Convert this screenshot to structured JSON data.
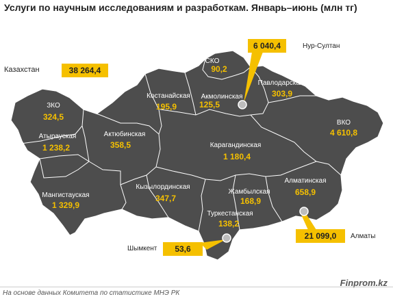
{
  "title": "Услуги по научным исследованиям и разработкам. Январь–июнь (млн тг)",
  "total": {
    "label": "Казахстан",
    "value": "38 264,4"
  },
  "regions": [
    {
      "id": "sko",
      "name": "СКО",
      "value": "90,2"
    },
    {
      "id": "kostanay",
      "name": "Костанайская",
      "value": "195,9"
    },
    {
      "id": "akmola",
      "name": "Акмолинская",
      "value": "125,5"
    },
    {
      "id": "pavlodar",
      "name": "Павлодарская",
      "value": "303,9"
    },
    {
      "id": "zko",
      "name": "ЗКО",
      "value": "324,5"
    },
    {
      "id": "atyrau",
      "name": "Атырауская",
      "value": "1 238,2"
    },
    {
      "id": "aktobe",
      "name": "Актюбинская",
      "value": "358,5"
    },
    {
      "id": "vko",
      "name": "ВКО",
      "value": "4 610,8"
    },
    {
      "id": "karaganda",
      "name": "Карагандинская",
      "value": "1 180,4"
    },
    {
      "id": "mangystau",
      "name": "Мангистауская",
      "value": "1 329,9"
    },
    {
      "id": "kyzylorda",
      "name": "Кызылординская",
      "value": "347,7"
    },
    {
      "id": "zhambyl",
      "name": "Жамбылская",
      "value": "168,9"
    },
    {
      "id": "almaty_obl",
      "name": "Алматинская",
      "value": "658,9"
    },
    {
      "id": "turkestan",
      "name": "Туркестанская",
      "value": "138,2"
    }
  ],
  "cities": [
    {
      "id": "nur-sultan",
      "name": "Нур-Султан",
      "value": "6 040,4"
    },
    {
      "id": "shymkent",
      "name": "Шымкент",
      "value": "53,6"
    },
    {
      "id": "almaty",
      "name": "Алматы",
      "value": "21 099,0"
    }
  ],
  "colors": {
    "region_fill": "#4d4d4d",
    "border": "#ffffff",
    "value_text": "#f5c000",
    "callout": "#f5c000"
  },
  "footer": "На основе данных Комитета по статистике МНЭ РК",
  "brand": "Finprom.kz"
}
